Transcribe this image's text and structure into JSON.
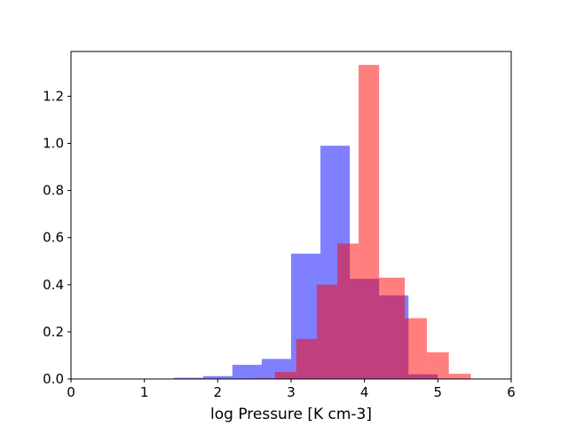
{
  "chart_data": {
    "type": "bar",
    "title": "",
    "xlabel": "log Pressure [K cm-3]",
    "ylabel": "",
    "xlim": [
      0,
      6
    ],
    "ylim": [
      0,
      1.39
    ],
    "xticks": [
      0,
      1,
      2,
      3,
      4,
      5,
      6
    ],
    "xtick_labels": [
      "0",
      "1",
      "2",
      "3",
      "4",
      "5",
      "6"
    ],
    "yticks": [
      0.0,
      0.2,
      0.4,
      0.6,
      0.8,
      1.0,
      1.2
    ],
    "ytick_labels": [
      "0.0",
      "0.2",
      "0.4",
      "0.6",
      "0.8",
      "1.0",
      "1.2"
    ],
    "grid": false,
    "series": [
      {
        "color": "#0000ff",
        "opacity": 0.5,
        "bins": [
          {
            "x0": 1.4,
            "x1": 1.8,
            "value": 0.005
          },
          {
            "x0": 1.8,
            "x1": 2.2,
            "value": 0.012
          },
          {
            "x0": 2.2,
            "x1": 2.6,
            "value": 0.06
          },
          {
            "x0": 2.6,
            "x1": 3.0,
            "value": 0.085
          },
          {
            "x0": 3.0,
            "x1": 3.4,
            "value": 0.532
          },
          {
            "x0": 3.4,
            "x1": 3.8,
            "value": 0.99
          },
          {
            "x0": 3.8,
            "x1": 4.2,
            "value": 0.425
          },
          {
            "x0": 4.2,
            "x1": 4.6,
            "value": 0.355
          },
          {
            "x0": 4.6,
            "x1": 5.0,
            "value": 0.02
          }
        ]
      },
      {
        "color": "#ff0000",
        "opacity": 0.5,
        "bins": [
          {
            "x0": 2.5,
            "x1": 2.78,
            "value": 0.003
          },
          {
            "x0": 2.78,
            "x1": 3.07,
            "value": 0.03
          },
          {
            "x0": 3.07,
            "x1": 3.35,
            "value": 0.17
          },
          {
            "x0": 3.35,
            "x1": 3.63,
            "value": 0.4
          },
          {
            "x0": 3.63,
            "x1": 3.92,
            "value": 0.575
          },
          {
            "x0": 3.92,
            "x1": 4.2,
            "value": 1.333
          },
          {
            "x0": 4.2,
            "x1": 4.55,
            "value": 0.43
          },
          {
            "x0": 4.55,
            "x1": 4.85,
            "value": 0.258
          },
          {
            "x0": 4.85,
            "x1": 5.15,
            "value": 0.113
          },
          {
            "x0": 5.15,
            "x1": 5.45,
            "value": 0.022
          }
        ]
      }
    ]
  }
}
